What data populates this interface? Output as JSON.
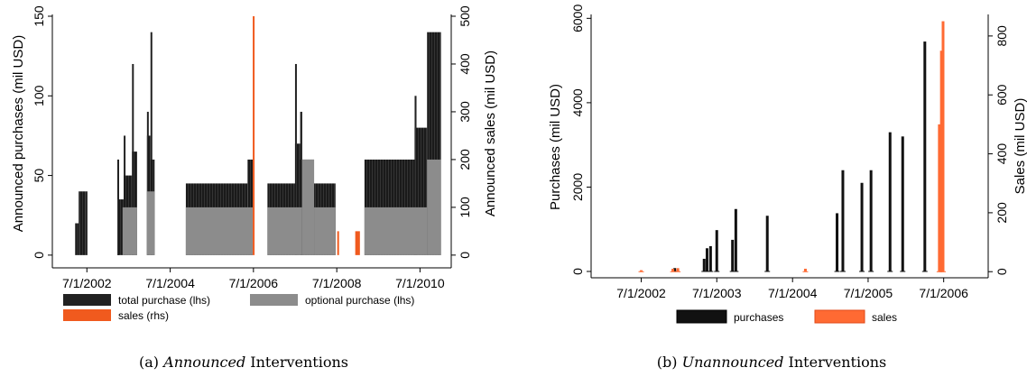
{
  "colors": {
    "total_purchase": "#222222",
    "optional_purchase": "#8c8c8c",
    "sales_a": "#f05a1e",
    "purchases_b": "#111111",
    "sales_b": "#ff6a33"
  },
  "chart_data": [
    {
      "type": "bar",
      "subtype": "daily-intervention-bars",
      "caption_prefix": "(a)",
      "caption_em": "Announced",
      "caption_rest": " Interventions",
      "title": "",
      "xlabel": "",
      "ylabel": "Announced purchases (mil USD)",
      "ylabel_right": "Announced sales (mil USD)",
      "xlim": [
        "2001-09-01",
        "2011-04-01"
      ],
      "ylim": [
        -8,
        150
      ],
      "ylim_right": [
        -26.7,
        500
      ],
      "xticks": [
        {
          "date": "2002-07-01",
          "label": "7/1/2002"
        },
        {
          "date": "2004-07-01",
          "label": "7/1/2004"
        },
        {
          "date": "2006-07-01",
          "label": "7/1/2006"
        },
        {
          "date": "2008-07-01",
          "label": "7/1/2008"
        },
        {
          "date": "2010-07-01",
          "label": "7/1/2010"
        }
      ],
      "yticks": [
        0,
        50,
        100,
        150
      ],
      "yticks_right": [
        0,
        100,
        200,
        300,
        400,
        500
      ],
      "legend_position": "bottom",
      "legend": [
        {
          "label": "total purchase (lhs)",
          "color": "#222222"
        },
        {
          "label": "optional purchase (lhs)",
          "color": "#8c8c8c"
        },
        {
          "label": "sales (rhs)",
          "color": "#f05a1e"
        }
      ],
      "series": [
        {
          "name": "total purchase (lhs)",
          "axis": "left",
          "style": "solid-hatched",
          "segments": [
            {
              "start": "2002-03-20",
              "end": "2002-04-20",
              "value": 20,
              "peak": 20
            },
            {
              "start": "2002-04-20",
              "end": "2002-06-20",
              "value": 40,
              "peak": 40
            },
            {
              "start": "2002-06-20",
              "end": "2002-07-01",
              "value": 0,
              "peak": 40
            },
            {
              "start": "2003-03-25",
              "end": "2003-05-20",
              "value": 35,
              "peak": 60
            },
            {
              "start": "2003-05-20",
              "end": "2003-08-01",
              "value": 50,
              "peak": 75
            },
            {
              "start": "2003-08-01",
              "end": "2003-09-15",
              "value": 65,
              "peak": 120
            },
            {
              "start": "2003-12-10",
              "end": "2004-01-10",
              "value": 75,
              "peak": 90
            },
            {
              "start": "2004-01-10",
              "end": "2004-02-15",
              "value": 60,
              "peak": 140
            },
            {
              "start": "2004-11-15",
              "end": "2006-05-10",
              "value": 45,
              "peak": 45
            },
            {
              "start": "2006-05-10",
              "end": "2006-06-25",
              "value": 60,
              "peak": 60
            },
            {
              "start": "2006-11-01",
              "end": "2007-07-01",
              "value": 45,
              "peak": 45
            },
            {
              "start": "2007-07-01",
              "end": "2007-08-15",
              "value": 70,
              "peak": 120
            },
            {
              "start": "2007-08-15",
              "end": "2007-12-15",
              "value": 60,
              "peak": 90
            },
            {
              "start": "2007-12-15",
              "end": "2008-06-20",
              "value": 45,
              "peak": 45
            },
            {
              "start": "2009-03-01",
              "end": "2010-05-15",
              "value": 60,
              "peak": 60
            },
            {
              "start": "2010-05-15",
              "end": "2010-09-01",
              "value": 80,
              "peak": 100
            },
            {
              "start": "2010-09-01",
              "end": "2011-01-01",
              "value": 140,
              "peak": 140
            }
          ]
        },
        {
          "name": "optional purchase (lhs)",
          "axis": "left",
          "segments": [
            {
              "start": "2003-05-10",
              "end": "2003-09-15",
              "value": 30
            },
            {
              "start": "2003-12-10",
              "end": "2004-02-15",
              "value": 40
            },
            {
              "start": "2004-11-15",
              "end": "2006-06-25",
              "value": 30
            },
            {
              "start": "2006-11-01",
              "end": "2007-09-01",
              "value": 30
            },
            {
              "start": "2007-09-01",
              "end": "2007-12-15",
              "value": 60
            },
            {
              "start": "2007-12-15",
              "end": "2008-06-20",
              "value": 30
            },
            {
              "start": "2009-03-01",
              "end": "2010-09-01",
              "value": 30
            },
            {
              "start": "2010-09-01",
              "end": "2011-01-01",
              "value": 60
            }
          ]
        },
        {
          "name": "sales (rhs)",
          "axis": "right",
          "segments": [
            {
              "start": "2006-06-25",
              "end": "2006-07-10",
              "value": 500
            },
            {
              "start": "2008-07-05",
              "end": "2008-07-20",
              "value": 50
            },
            {
              "start": "2008-12-10",
              "end": "2009-01-20",
              "value": 50
            }
          ]
        }
      ]
    },
    {
      "type": "bar",
      "subtype": "daily-intervention-bars",
      "caption_prefix": "(b)",
      "caption_em": "Unannounced",
      "caption_rest": " Interventions",
      "title": "",
      "xlabel": "",
      "ylabel": "Purchases (mil USD)",
      "ylabel_right": "Sales (mil USD)",
      "xlim": [
        "2001-11-01",
        "2007-02-01"
      ],
      "ylim": [
        -150,
        6050
      ],
      "ylim_right": [
        -20.7,
        867
      ],
      "xticks": [
        {
          "date": "2002-07-01",
          "label": "7/1/2002"
        },
        {
          "date": "2003-07-01",
          "label": "7/1/2003"
        },
        {
          "date": "2004-07-01",
          "label": "7/1/2004"
        },
        {
          "date": "2005-07-01",
          "label": "7/1/2005"
        },
        {
          "date": "2006-07-01",
          "label": "7/1/2006"
        }
      ],
      "yticks": [
        0,
        2000,
        4000,
        6000
      ],
      "yticks_right": [
        0,
        200,
        400,
        600,
        800
      ],
      "legend_position": "bottom",
      "legend": [
        {
          "label": "purchases",
          "color": "#111111"
        },
        {
          "label": "sales",
          "color": "#ff6a33"
        }
      ],
      "series": [
        {
          "name": "purchases",
          "axis": "left",
          "bars": [
            {
              "date": "2002-12-10",
              "value": 80
            },
            {
              "date": "2003-05-01",
              "value": 300
            },
            {
              "date": "2003-05-15",
              "value": 550
            },
            {
              "date": "2003-06-01",
              "value": 600
            },
            {
              "date": "2003-07-01",
              "value": 980
            },
            {
              "date": "2003-09-15",
              "value": 750
            },
            {
              "date": "2003-10-01",
              "value": 1480
            },
            {
              "date": "2004-03-01",
              "value": 1320
            },
            {
              "date": "2005-02-01",
              "value": 1380
            },
            {
              "date": "2005-03-01",
              "value": 2400
            },
            {
              "date": "2005-06-01",
              "value": 2100
            },
            {
              "date": "2005-07-15",
              "value": 2400
            },
            {
              "date": "2005-10-15",
              "value": 3300
            },
            {
              "date": "2005-12-15",
              "value": 3200
            },
            {
              "date": "2006-04-01",
              "value": 5450
            }
          ]
        },
        {
          "name": "sales",
          "axis": "right",
          "bars": [
            {
              "date": "2002-07-01",
              "value": 5
            },
            {
              "date": "2002-12-01",
              "value": 10
            },
            {
              "date": "2002-12-25",
              "value": 12
            },
            {
              "date": "2004-09-01",
              "value": 10
            },
            {
              "date": "2006-06-10",
              "value": 500
            },
            {
              "date": "2006-06-20",
              "value": 750
            },
            {
              "date": "2006-06-28",
              "value": 850
            }
          ]
        }
      ]
    }
  ]
}
